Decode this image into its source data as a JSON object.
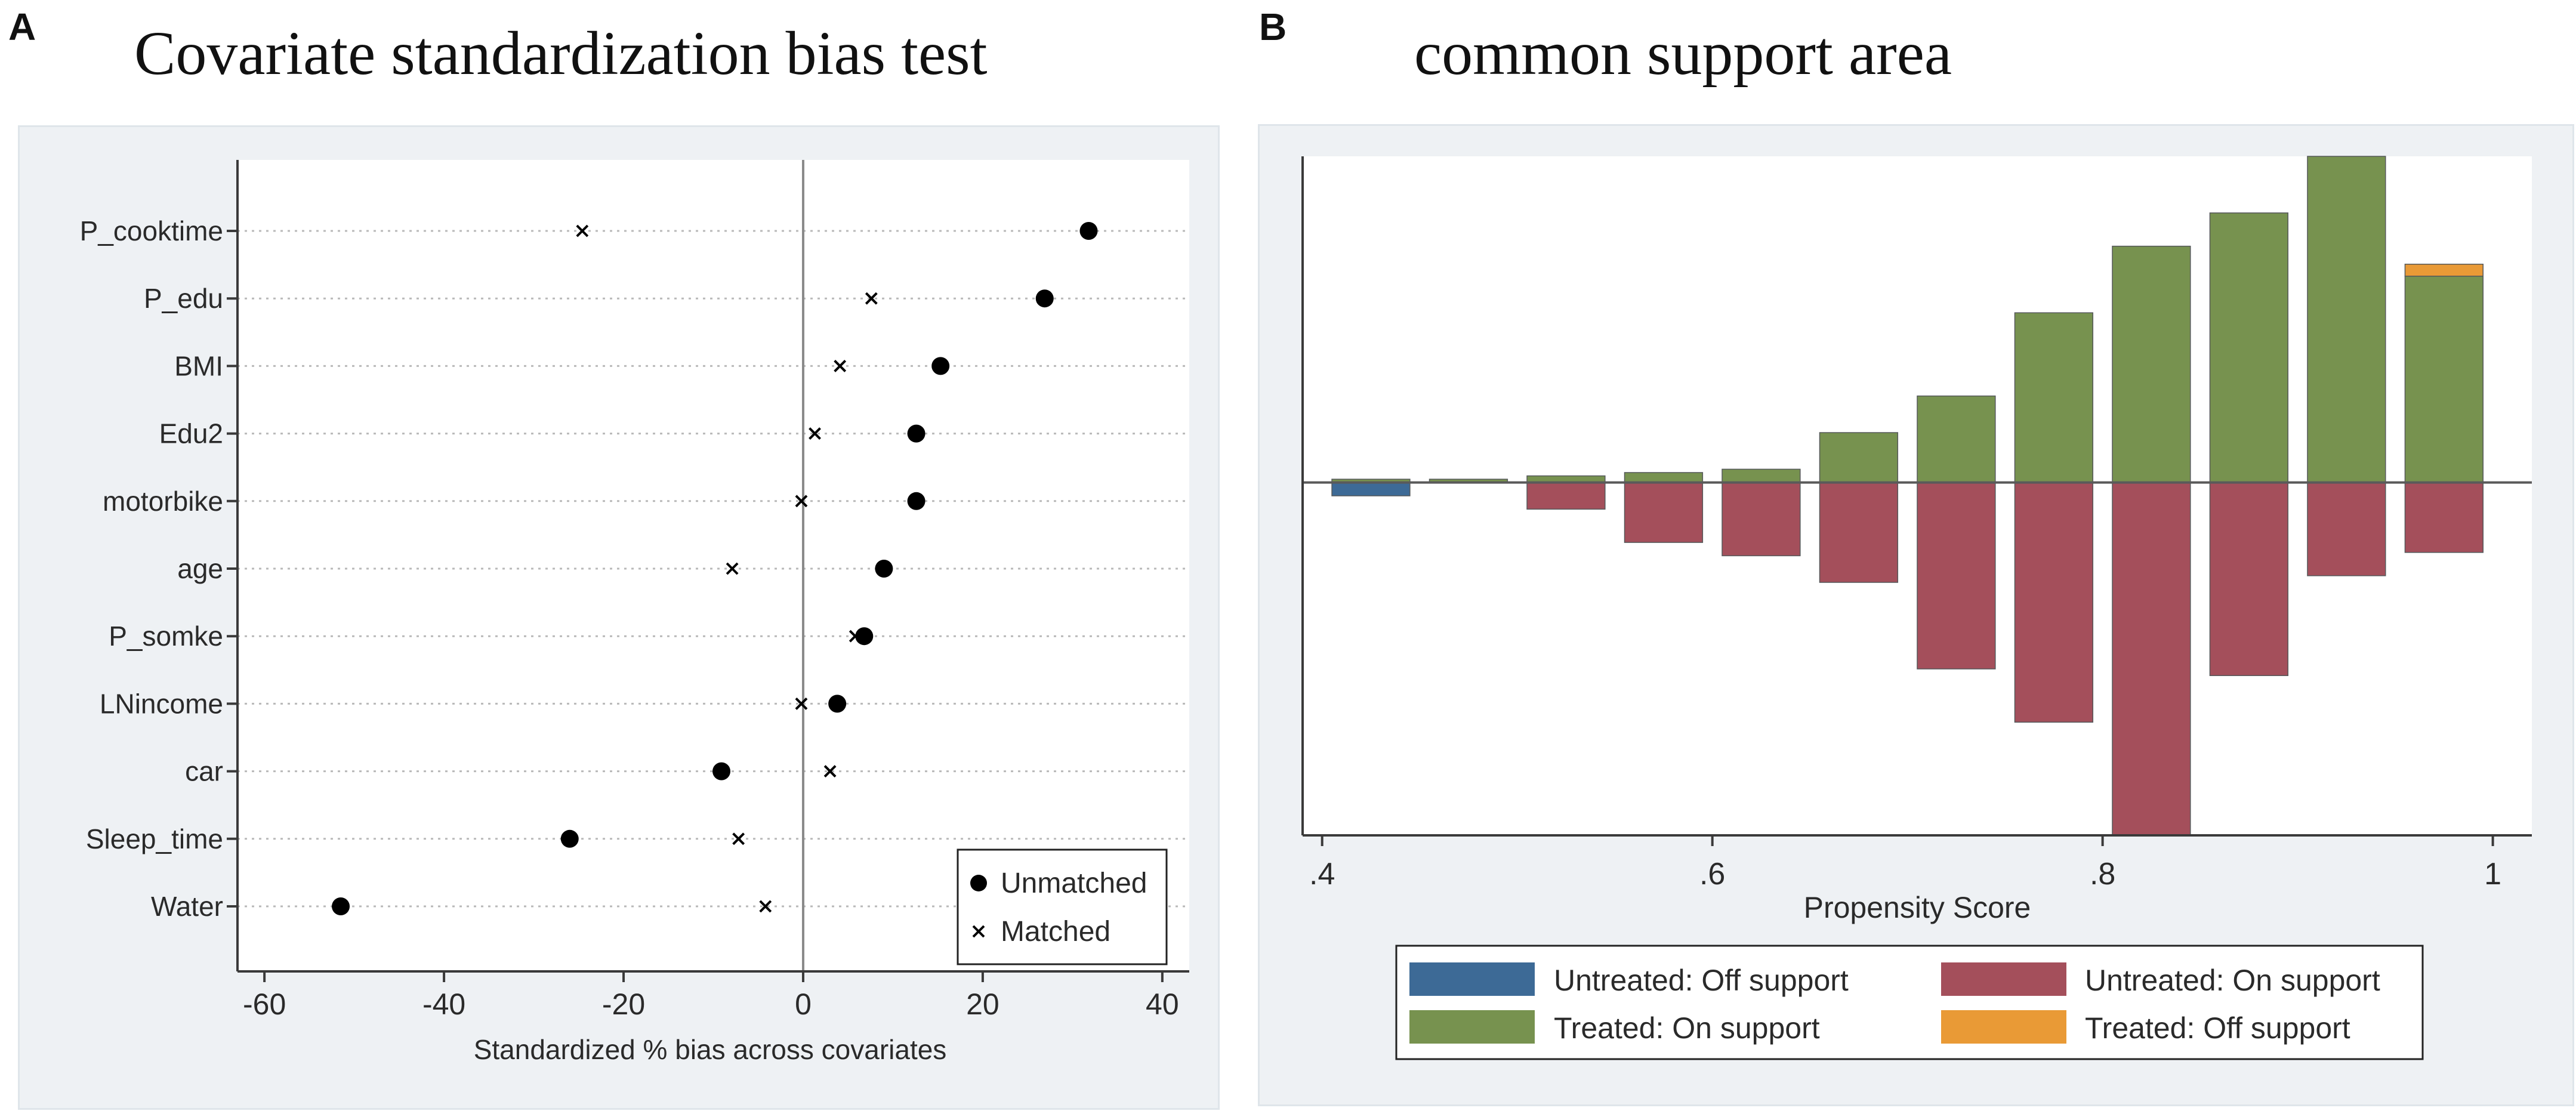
{
  "panels": {
    "A": {
      "letter": "A",
      "title": "Covariate standardization bias test"
    },
    "B": {
      "letter": "B",
      "title": "common support area"
    }
  },
  "chart_data": [
    {
      "type": "scatter",
      "title": "Covariate standardization bias test",
      "xlabel": "Standardized % bias across covariates",
      "ylabel": "",
      "xlim": [
        -63,
        43
      ],
      "xticks": [
        -60,
        -40,
        -20,
        0,
        20,
        40
      ],
      "xtick_labels": [
        "-60",
        "-40",
        "-20",
        "0",
        "20",
        "40"
      ],
      "grid": "dotted horizontal lines at each covariate",
      "reference_line": 0,
      "legend_position": "bottom-right",
      "categories": [
        "P_cooktime",
        "P_edu",
        "BMI",
        "Edu2",
        "motorbike",
        "age",
        "P_somke",
        "LNincome",
        "car",
        "Sleep_time",
        "Water"
      ],
      "series": [
        {
          "name": "Unmatched",
          "marker": "dot",
          "values": [
            31.8,
            26.9,
            15.3,
            12.6,
            12.6,
            9.0,
            6.8,
            3.8,
            -9.1,
            -26.0,
            -51.5
          ]
        },
        {
          "name": "Matched",
          "marker": "x",
          "values": [
            -24.6,
            7.6,
            4.1,
            1.3,
            -0.2,
            -7.9,
            5.8,
            -0.2,
            3.0,
            -7.2,
            -4.2
          ]
        }
      ]
    },
    {
      "type": "bar",
      "title": "common support area",
      "xlabel": "Propensity Score",
      "ylabel": "",
      "xlim": [
        0.39,
        1.02
      ],
      "ylim": [
        -53,
        49
      ],
      "xticks": [
        0.4,
        0.6,
        0.8,
        1.0
      ],
      "xtick_labels": [
        ".4",
        ".6",
        ".8",
        "1"
      ],
      "bin_width": 0.05,
      "reference_line": 0,
      "legend_position": "bottom",
      "categories": [
        0.425,
        0.475,
        0.525,
        0.575,
        0.625,
        0.675,
        0.725,
        0.775,
        0.825,
        0.875,
        0.925,
        0.975
      ],
      "series": [
        {
          "name": "Untreated: Off support",
          "color": "#3d6a96",
          "values": [
            -2,
            0,
            0,
            0,
            0,
            0,
            0,
            0,
            0,
            0,
            0,
            0
          ]
        },
        {
          "name": "Untreated: On support",
          "color": "#a44f5b",
          "values": [
            0,
            0,
            -4,
            -9,
            -11,
            -15,
            -28,
            -36,
            -53,
            -29,
            -14,
            -10.5
          ]
        },
        {
          "name": "Treated: On support",
          "color": "#77924f",
          "values": [
            0.5,
            0.5,
            1,
            1.5,
            2,
            7.5,
            13,
            25.5,
            35.5,
            40.5,
            49,
            31
          ]
        },
        {
          "name": "Treated: Off support",
          "color": "#e99a36",
          "values": [
            0,
            0,
            0,
            0,
            0,
            0,
            0,
            0,
            0,
            0,
            0,
            1.8
          ]
        }
      ]
    }
  ]
}
